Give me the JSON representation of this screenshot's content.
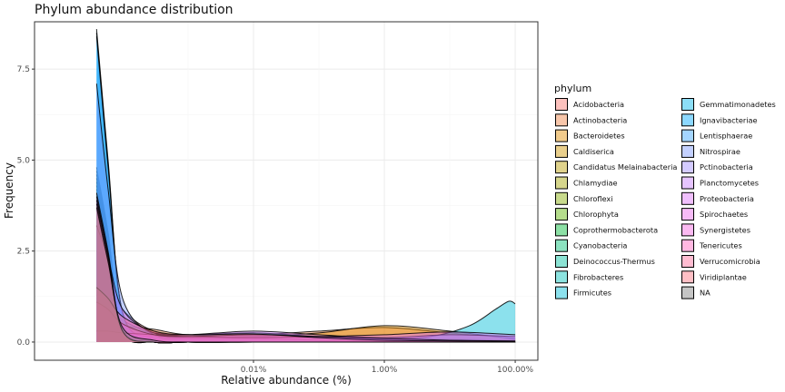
{
  "chart_data": {
    "type": "area",
    "title": "Phylum abundance distribution",
    "xlabel": "Relative abundance (%)",
    "ylabel": "Frequency",
    "x_scale": "log10",
    "xlim": [
      1e-07,
      1.0
    ],
    "ylim": [
      -0.5,
      8.8
    ],
    "grid": true,
    "legend_position": "right",
    "legend_title": "phylum",
    "x_ticks": [
      {
        "value": 0.0001,
        "label": "0.01%"
      },
      {
        "value": 0.01,
        "label": "1.00%"
      },
      {
        "value": 1.0,
        "label": "100.00%"
      }
    ],
    "y_ticks": [
      {
        "value": 0.0,
        "label": "0.0"
      },
      {
        "value": 2.5,
        "label": "2.5"
      },
      {
        "value": 5.0,
        "label": "5.0"
      },
      {
        "value": 7.5,
        "label": "7.5"
      }
    ],
    "series": [
      {
        "name": "Acidobacteria",
        "color": "#F8766D",
        "points": [
          [
            4e-07,
            2.5
          ],
          [
            6e-07,
            1.9
          ],
          [
            1e-06,
            0.9
          ],
          [
            3e-06,
            0.3
          ],
          [
            1e-05,
            0.2
          ],
          [
            0.0001,
            0.2
          ],
          [
            0.001,
            0.12
          ],
          [
            0.01,
            0.1
          ],
          [
            0.1,
            0.08
          ],
          [
            1.0,
            0.05
          ]
        ]
      },
      {
        "name": "Actinobacteria",
        "color": "#EE8043",
        "points": [
          [
            4e-07,
            0.7
          ],
          [
            6e-07,
            0.6
          ],
          [
            1e-06,
            0.45
          ],
          [
            3e-06,
            0.35
          ],
          [
            1e-05,
            0.2
          ],
          [
            0.0001,
            0.2
          ],
          [
            0.001,
            0.3
          ],
          [
            0.01,
            0.4
          ],
          [
            0.1,
            0.25
          ],
          [
            1.0,
            0.1
          ]
        ]
      },
      {
        "name": "Bacteroidetes",
        "color": "#E08B00",
        "points": [
          [
            4e-07,
            0.65
          ],
          [
            6e-07,
            0.55
          ],
          [
            1e-06,
            0.4
          ],
          [
            3e-06,
            0.25
          ],
          [
            1e-05,
            0.15
          ],
          [
            0.0001,
            0.15
          ],
          [
            0.001,
            0.25
          ],
          [
            0.01,
            0.45
          ],
          [
            0.1,
            0.3
          ],
          [
            1.0,
            0.08
          ]
        ]
      },
      {
        "name": "Caldiserica",
        "color": "#CF9500",
        "points": [
          [
            4e-07,
            4.8
          ],
          [
            6e-07,
            3.0
          ],
          [
            1e-06,
            0.3
          ],
          [
            3e-06,
            0.0
          ],
          [
            1e-05,
            0.0
          ],
          [
            0.0001,
            0.0
          ],
          [
            0.001,
            0.0
          ],
          [
            0.01,
            0.0
          ],
          [
            0.1,
            0.0
          ],
          [
            1.0,
            0.0
          ]
        ]
      },
      {
        "name": "Candidatus Melainabacteria",
        "color": "#BB9D00",
        "points": [
          [
            4e-07,
            4.7
          ],
          [
            6e-07,
            3.0
          ],
          [
            1e-06,
            0.3
          ],
          [
            3e-06,
            0.0
          ],
          [
            1e-05,
            0.0
          ],
          [
            0.0001,
            0.0
          ],
          [
            0.001,
            0.0
          ],
          [
            0.01,
            0.0
          ],
          [
            0.1,
            0.0
          ],
          [
            1.0,
            0.0
          ]
        ]
      },
      {
        "name": "Chlamydiae",
        "color": "#A3A500",
        "points": [
          [
            4e-07,
            4.6
          ],
          [
            6e-07,
            2.9
          ],
          [
            1e-06,
            0.3
          ],
          [
            3e-06,
            0.0
          ],
          [
            1e-05,
            0.0
          ],
          [
            0.0001,
            0.0
          ],
          [
            0.001,
            0.0
          ],
          [
            0.01,
            0.0
          ],
          [
            0.1,
            0.0
          ],
          [
            1.0,
            0.0
          ]
        ]
      },
      {
        "name": "Chloroflexi",
        "color": "#85AD00",
        "points": [
          [
            4e-07,
            1.2
          ],
          [
            6e-07,
            0.9
          ],
          [
            1e-06,
            0.5
          ],
          [
            3e-06,
            0.2
          ],
          [
            1e-05,
            0.15
          ],
          [
            0.0001,
            0.25
          ],
          [
            0.001,
            0.12
          ],
          [
            0.01,
            0.08
          ],
          [
            0.1,
            0.05
          ],
          [
            1.0,
            0.03
          ]
        ]
      },
      {
        "name": "Chlorophyta",
        "color": "#5BB300",
        "points": [
          [
            4e-07,
            4.5
          ],
          [
            6e-07,
            2.8
          ],
          [
            1e-06,
            0.3
          ],
          [
            3e-06,
            0.0
          ],
          [
            1e-05,
            0.0
          ],
          [
            0.0001,
            0.0
          ],
          [
            0.001,
            0.0
          ],
          [
            0.01,
            0.0
          ],
          [
            0.1,
            0.0
          ],
          [
            1.0,
            0.0
          ]
        ]
      },
      {
        "name": "Coprothermobacterota",
        "color": "#00BA38",
        "points": [
          [
            4e-07,
            4.4
          ],
          [
            6e-07,
            2.7
          ],
          [
            1e-06,
            0.3
          ],
          [
            3e-06,
            0.0
          ],
          [
            1e-05,
            0.0
          ],
          [
            0.0001,
            0.0
          ],
          [
            0.001,
            0.0
          ],
          [
            0.01,
            0.0
          ],
          [
            0.1,
            0.0
          ],
          [
            1.0,
            0.0
          ]
        ]
      },
      {
        "name": "Cyanobacteria",
        "color": "#00BF74",
        "points": [
          [
            4e-07,
            1.3
          ],
          [
            6e-07,
            1.0
          ],
          [
            1e-06,
            0.6
          ],
          [
            3e-06,
            0.25
          ],
          [
            1e-05,
            0.2
          ],
          [
            0.0001,
            0.25
          ],
          [
            0.001,
            0.15
          ],
          [
            0.01,
            0.08
          ],
          [
            0.1,
            0.05
          ],
          [
            1.0,
            0.03
          ]
        ]
      },
      {
        "name": "Deinococcus-Thermus",
        "color": "#00C19F",
        "points": [
          [
            4e-07,
            4.3
          ],
          [
            6e-07,
            2.7
          ],
          [
            1e-06,
            0.3
          ],
          [
            3e-06,
            0.0
          ],
          [
            1e-05,
            0.0
          ],
          [
            0.0001,
            0.0
          ],
          [
            0.001,
            0.0
          ],
          [
            0.01,
            0.0
          ],
          [
            0.1,
            0.0
          ],
          [
            1.0,
            0.0
          ]
        ]
      },
      {
        "name": "Fibrobacteres",
        "color": "#00C0BB",
        "points": [
          [
            4e-07,
            4.2
          ],
          [
            6e-07,
            2.6
          ],
          [
            1e-06,
            0.3
          ],
          [
            3e-06,
            0.0
          ],
          [
            1e-05,
            0.0
          ],
          [
            0.0001,
            0.0
          ],
          [
            0.001,
            0.0
          ],
          [
            0.01,
            0.0
          ],
          [
            0.1,
            0.0
          ],
          [
            1.0,
            0.0
          ]
        ]
      },
      {
        "name": "Firmicutes",
        "color": "#00BCD6",
        "points": [
          [
            4e-07,
            0.3
          ],
          [
            6e-07,
            0.25
          ],
          [
            1e-06,
            0.2
          ],
          [
            3e-06,
            0.15
          ],
          [
            1e-05,
            0.12
          ],
          [
            0.0001,
            0.15
          ],
          [
            0.001,
            0.12
          ],
          [
            0.01,
            0.1
          ],
          [
            0.05,
            0.15
          ],
          [
            0.2,
            0.45
          ],
          [
            0.5,
            0.9
          ],
          [
            0.8,
            1.12
          ],
          [
            1.0,
            1.05
          ]
        ]
      },
      {
        "name": "Gemmatimonadetes",
        "color": "#00B5EE",
        "points": [
          [
            4e-07,
            8.6
          ],
          [
            6e-07,
            5.0
          ],
          [
            1e-06,
            0.8
          ],
          [
            3e-06,
            0.1
          ],
          [
            1e-05,
            0.0
          ],
          [
            0.0001,
            0.0
          ],
          [
            0.001,
            0.0
          ],
          [
            0.01,
            0.0
          ],
          [
            0.1,
            0.0
          ],
          [
            1.0,
            0.0
          ]
        ]
      },
      {
        "name": "Ignavibacteriae",
        "color": "#00A9FF",
        "points": [
          [
            4e-07,
            8.5
          ],
          [
            6e-07,
            4.9
          ],
          [
            1e-06,
            0.8
          ],
          [
            3e-06,
            0.1
          ],
          [
            1e-05,
            0.0
          ],
          [
            0.0001,
            0.0
          ],
          [
            0.001,
            0.0
          ],
          [
            0.01,
            0.0
          ],
          [
            0.1,
            0.0
          ],
          [
            1.0,
            0.0
          ]
        ]
      },
      {
        "name": "Lentisphaerae",
        "color": "#35A2FF",
        "points": [
          [
            4e-07,
            8.4
          ],
          [
            6e-07,
            4.8
          ],
          [
            1e-06,
            0.8
          ],
          [
            3e-06,
            0.1
          ],
          [
            1e-05,
            0.0
          ],
          [
            0.0001,
            0.0
          ],
          [
            0.001,
            0.0
          ],
          [
            0.01,
            0.0
          ],
          [
            0.1,
            0.0
          ],
          [
            1.0,
            0.0
          ]
        ]
      },
      {
        "name": "Nitrospirae",
        "color": "#7997FF",
        "points": [
          [
            4e-07,
            7.1
          ],
          [
            6e-07,
            4.2
          ],
          [
            1e-06,
            1.2
          ],
          [
            3e-06,
            0.2
          ],
          [
            1e-05,
            0.1
          ],
          [
            0.0001,
            0.1
          ],
          [
            0.001,
            0.05
          ],
          [
            0.01,
            0.02
          ],
          [
            0.1,
            0.0
          ],
          [
            1.0,
            0.0
          ]
        ]
      },
      {
        "name": "Pctinobacteria",
        "color": "#9F8CFF",
        "points": [
          [
            4e-07,
            4.1
          ],
          [
            6e-07,
            2.5
          ],
          [
            1e-06,
            0.3
          ],
          [
            3e-06,
            0.0
          ],
          [
            1e-05,
            0.0
          ],
          [
            0.0001,
            0.0
          ],
          [
            0.001,
            0.0
          ],
          [
            0.01,
            0.0
          ],
          [
            0.1,
            0.0
          ],
          [
            1.0,
            0.0
          ]
        ]
      },
      {
        "name": "Planctomycetes",
        "color": "#C77CFF",
        "points": [
          [
            4e-07,
            3.2
          ],
          [
            6e-07,
            2.3
          ],
          [
            1e-06,
            0.9
          ],
          [
            3e-06,
            0.25
          ],
          [
            1e-05,
            0.2
          ],
          [
            0.0001,
            0.3
          ],
          [
            0.001,
            0.2
          ],
          [
            0.01,
            0.12
          ],
          [
            0.1,
            0.2
          ],
          [
            1.0,
            0.15
          ]
        ]
      },
      {
        "name": "Proteobacteria",
        "color": "#DD71FA",
        "points": [
          [
            4e-07,
            0.3
          ],
          [
            6e-07,
            0.3
          ],
          [
            1e-06,
            0.25
          ],
          [
            3e-06,
            0.2
          ],
          [
            1e-05,
            0.15
          ],
          [
            0.0001,
            0.12
          ],
          [
            0.001,
            0.15
          ],
          [
            0.01,
            0.2
          ],
          [
            0.1,
            0.28
          ],
          [
            1.0,
            0.2
          ]
        ]
      },
      {
        "name": "Spirochaetes",
        "color": "#EC68EE",
        "points": [
          [
            4e-07,
            1.1
          ],
          [
            6e-07,
            0.9
          ],
          [
            1e-06,
            0.5
          ],
          [
            3e-06,
            0.2
          ],
          [
            1e-05,
            0.15
          ],
          [
            0.0001,
            0.2
          ],
          [
            0.001,
            0.15
          ],
          [
            0.01,
            0.1
          ],
          [
            0.1,
            0.05
          ],
          [
            1.0,
            0.03
          ]
        ]
      },
      {
        "name": "Synergistetes",
        "color": "#F763E0",
        "points": [
          [
            4e-07,
            4.0
          ],
          [
            6e-07,
            2.4
          ],
          [
            1e-06,
            0.3
          ],
          [
            3e-06,
            0.0
          ],
          [
            1e-05,
            0.0
          ],
          [
            0.0001,
            0.0
          ],
          [
            0.001,
            0.0
          ],
          [
            0.01,
            0.0
          ],
          [
            0.1,
            0.0
          ],
          [
            1.0,
            0.0
          ]
        ]
      },
      {
        "name": "Tenericutes",
        "color": "#FF62BC",
        "points": [
          [
            4e-07,
            3.9
          ],
          [
            6e-07,
            2.4
          ],
          [
            1e-06,
            0.3
          ],
          [
            3e-06,
            0.0
          ],
          [
            1e-05,
            0.0
          ],
          [
            0.0001,
            0.0
          ],
          [
            0.001,
            0.0
          ],
          [
            0.01,
            0.0
          ],
          [
            0.1,
            0.0
          ],
          [
            1.0,
            0.0
          ]
        ]
      },
      {
        "name": "Verrucomicrobia",
        "color": "#FF6A98",
        "points": [
          [
            4e-07,
            1.5
          ],
          [
            6e-07,
            1.2
          ],
          [
            1e-06,
            0.7
          ],
          [
            3e-06,
            0.3
          ],
          [
            1e-05,
            0.2
          ],
          [
            0.0001,
            0.22
          ],
          [
            0.001,
            0.12
          ],
          [
            0.01,
            0.05
          ],
          [
            0.1,
            0.03
          ],
          [
            1.0,
            0.02
          ]
        ]
      },
      {
        "name": "Viridiplantae",
        "color": "#FC717F",
        "points": [
          [
            4e-07,
            3.8
          ],
          [
            6e-07,
            2.3
          ],
          [
            1e-06,
            0.3
          ],
          [
            3e-06,
            0.0
          ],
          [
            1e-05,
            0.0
          ],
          [
            0.0001,
            0.0
          ],
          [
            0.001,
            0.0
          ],
          [
            0.01,
            0.0
          ],
          [
            0.1,
            0.0
          ],
          [
            1.0,
            0.0
          ]
        ]
      },
      {
        "name": "NA",
        "color": "#7F7F7F",
        "points": [
          [
            4e-07,
            3.7
          ],
          [
            6e-07,
            2.2
          ],
          [
            1e-06,
            0.4
          ],
          [
            3e-06,
            0.05
          ],
          [
            1e-05,
            0.0
          ],
          [
            0.0001,
            0.0
          ],
          [
            0.001,
            0.0
          ],
          [
            0.01,
            0.0
          ],
          [
            0.1,
            0.0
          ],
          [
            1.0,
            0.0
          ]
        ]
      }
    ]
  }
}
